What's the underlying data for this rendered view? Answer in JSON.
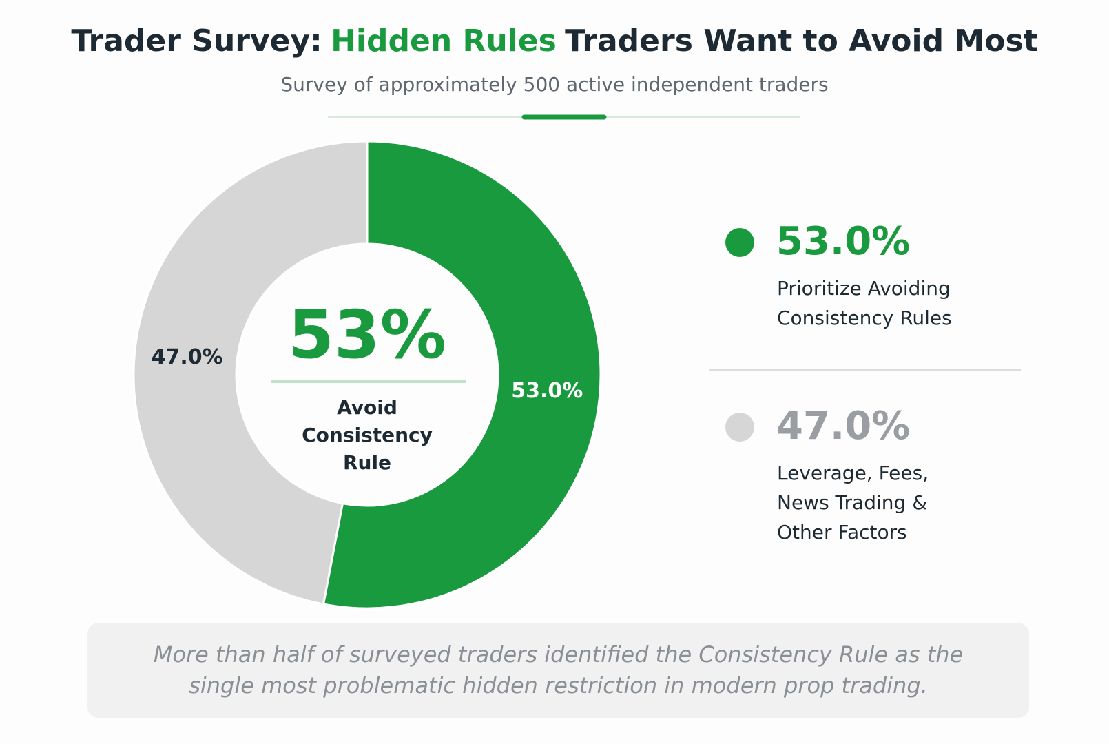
{
  "chart_data": {
    "type": "donut",
    "title": {
      "lead": "Trader Survey:",
      "highlight": "Hidden Rules",
      "tail": "Traders Want to Avoid Most"
    },
    "subtitle": "Survey of approximately 500 active independent traders",
    "categories": [
      "Prioritize Avoiding Consistency Rules",
      "Leverage, Fees, News Trading & Other Factors"
    ],
    "values": [
      53.0,
      47.0
    ],
    "value_labels": [
      "53.0%",
      "47.0%"
    ],
    "colors": [
      "#1a9a3e",
      "#d6d6d6"
    ],
    "center": {
      "text": "53%",
      "caption": "Avoid Consistency Rule"
    },
    "footnote": "More than half of surveyed traders identified the Consistency Rule as the single most problematic hidden restriction in modern prop trading."
  }
}
